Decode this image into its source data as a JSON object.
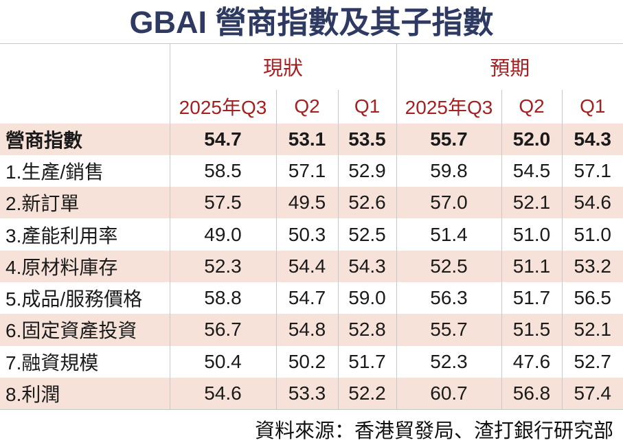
{
  "title": "GBAI 營商指數及其子指數",
  "source_note": "資料來源：香港貿發局、渣打銀行研究部",
  "colors": {
    "title_navy": "#2e3a62",
    "header_red": "#a61f21",
    "row_pink": "#f6e2d9",
    "grid_line": "#c8c8c8",
    "text": "#1a1a1a"
  },
  "chart_data": {
    "type": "table",
    "title": "GBAI 營商指數及其子指數",
    "column_groups": [
      {
        "label": "現狀",
        "columns": [
          "2025年Q3",
          "Q2",
          "Q1"
        ]
      },
      {
        "label": "預期",
        "columns": [
          "2025年Q3",
          "Q2",
          "Q1"
        ]
      }
    ],
    "rows": [
      {
        "label": "營商指數",
        "emphasis": true,
        "values": [
          54.7,
          53.1,
          53.5,
          55.7,
          52.0,
          54.3
        ]
      },
      {
        "label": "1.生產/銷售",
        "emphasis": false,
        "values": [
          58.5,
          57.1,
          52.9,
          59.8,
          54.5,
          57.1
        ]
      },
      {
        "label": "2.新訂單",
        "emphasis": false,
        "values": [
          57.5,
          49.5,
          52.6,
          57.0,
          52.1,
          54.6
        ]
      },
      {
        "label": "3.產能利用率",
        "emphasis": false,
        "values": [
          49.0,
          50.3,
          52.5,
          51.4,
          51.0,
          51.0
        ]
      },
      {
        "label": "4.原材料庫存",
        "emphasis": false,
        "values": [
          52.3,
          54.4,
          54.3,
          52.5,
          51.1,
          53.2
        ]
      },
      {
        "label": "5.成品/服務價格",
        "emphasis": false,
        "values": [
          58.8,
          54.7,
          59.0,
          56.3,
          51.7,
          56.5
        ]
      },
      {
        "label": "6.固定資產投資",
        "emphasis": false,
        "values": [
          56.7,
          54.8,
          52.8,
          55.7,
          51.5,
          52.1
        ]
      },
      {
        "label": "7.融資規模",
        "emphasis": false,
        "values": [
          50.4,
          50.2,
          51.7,
          52.3,
          47.6,
          52.7
        ]
      },
      {
        "label": "8.利潤",
        "emphasis": false,
        "values": [
          54.6,
          53.3,
          52.2,
          60.7,
          56.8,
          57.4
        ]
      }
    ],
    "source": "資料來源：香港貿發局、渣打銀行研究部",
    "value_format": "one-decimal",
    "layout": {
      "alternating_row_shading": true,
      "first_row_bold": true
    }
  }
}
